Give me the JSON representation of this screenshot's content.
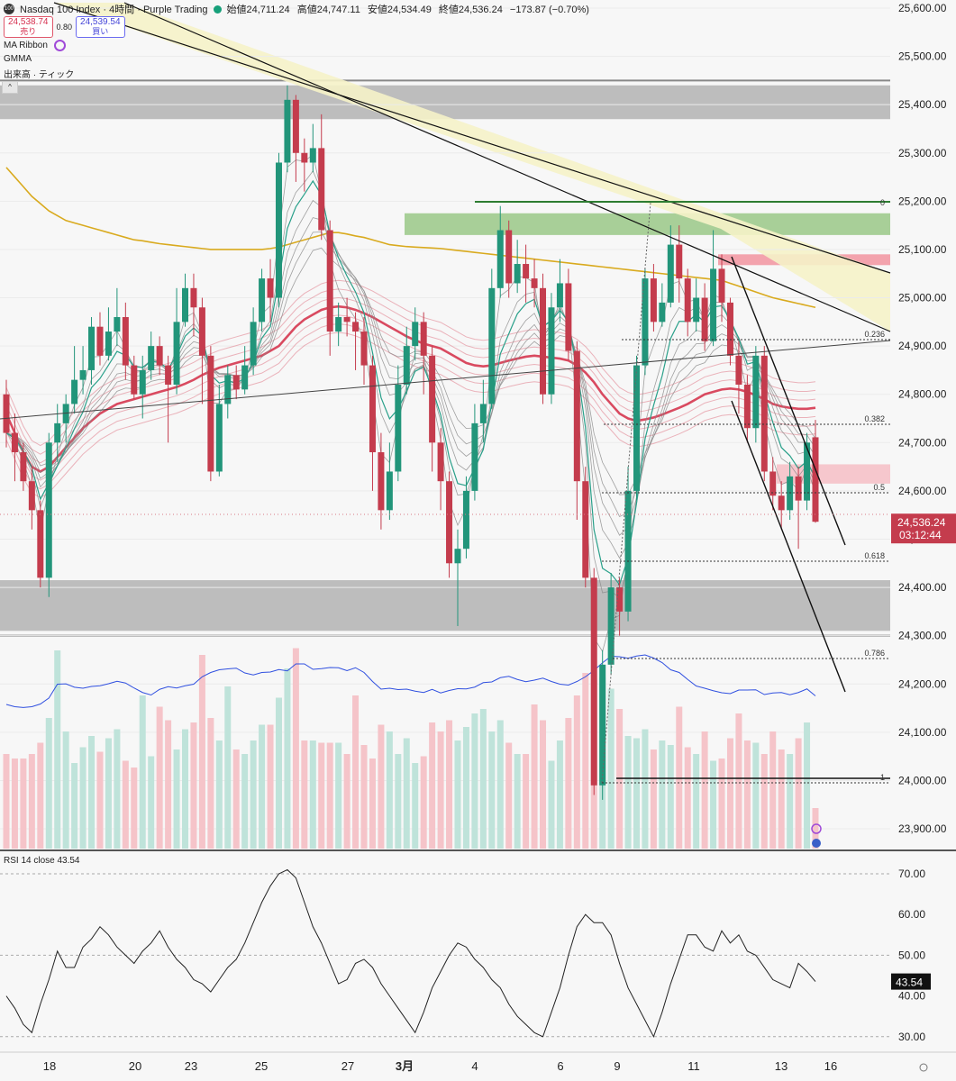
{
  "header": {
    "title": "Nasdaq 100 Index · 4時間 · Purple Trading",
    "logo_text": "100",
    "open": "始値24,711.24",
    "high": "高値24,747.11",
    "low": "安値24,534.49",
    "close": "終値24,536.24",
    "change": "−173.87 (−0.70%)",
    "sell_price": "24,538.74",
    "sell_label": "売り",
    "spread": "0.80",
    "buy_price": "24,539.54",
    "buy_label": "買い"
  },
  "indicators": [
    "MA Ribbon",
    "GMMA",
    "出来高 · ティック"
  ],
  "rsi_label": "RSI 14 close  43.54",
  "price_tag": {
    "value": "24,536.24",
    "countdown": "03:12:44"
  },
  "rsi_tag": "43.54",
  "colors": {
    "up": "#22957a",
    "down": "#c43c4d",
    "accent": "#c43c4d"
  },
  "chart_data": [
    {
      "type": "candlestick",
      "title": "Nasdaq 100 Index · 4時間 · Purple Trading",
      "y_ticks": [
        25600,
        25500,
        25400,
        25300,
        25200,
        25100,
        25000,
        24900,
        24800,
        24700,
        24600,
        24500,
        24400,
        24300,
        24200,
        24100,
        24000,
        23900
      ],
      "y_tick_labels": [
        "25,600.00",
        "25,500.00",
        "25,400.00",
        "25,300.00",
        "25,200.00",
        "25,100.00",
        "25,000.00",
        "24,900.00",
        "24,800.00",
        "24,700.00",
        "24,600.00",
        "24,500.00",
        "24,400.00",
        "24,300.00",
        "24,200.00",
        "24,100.00",
        "24,000.00",
        "23,900.00"
      ],
      "x_tick_labels": [
        "18",
        "20",
        "23",
        "25",
        "27",
        "3月",
        "4",
        "6",
        "9",
        "11",
        "13",
        "16"
      ],
      "ylim": [
        23830,
        25630
      ],
      "candles": [
        [
          24800,
          24720,
          24830,
          24690
        ],
        [
          24720,
          24680,
          24760,
          24620
        ],
        [
          24680,
          24620,
          24700,
          24600
        ],
        [
          24620,
          24560,
          24650,
          24520
        ],
        [
          24560,
          24420,
          24580,
          24400
        ],
        [
          24420,
          24700,
          24720,
          24380
        ],
        [
          24700,
          24740,
          24780,
          24660
        ],
        [
          24740,
          24780,
          24800,
          24700
        ],
        [
          24780,
          24830,
          24900,
          24760
        ],
        [
          24830,
          24850,
          24900,
          24800
        ],
        [
          24850,
          24940,
          24960,
          24820
        ],
        [
          24940,
          24880,
          24970,
          24860
        ],
        [
          24880,
          24930,
          24980,
          24870
        ],
        [
          24930,
          24960,
          25020,
          24900
        ],
        [
          24960,
          24860,
          24990,
          24830
        ],
        [
          24860,
          24800,
          24880,
          24790
        ],
        [
          24800,
          24850,
          24880,
          24750
        ],
        [
          24850,
          24900,
          24930,
          24830
        ],
        [
          24900,
          24860,
          24920,
          24840
        ],
        [
          24860,
          24820,
          24880,
          24700
        ],
        [
          24820,
          24950,
          25020,
          24800
        ],
        [
          24950,
          25020,
          25050,
          24940
        ],
        [
          25020,
          24980,
          25050,
          24920
        ],
        [
          24980,
          24880,
          25000,
          24780
        ],
        [
          24880,
          24640,
          24900,
          24620
        ],
        [
          24640,
          24780,
          24820,
          24630
        ],
        [
          24780,
          24840,
          24860,
          24750
        ],
        [
          24840,
          24810,
          24860,
          24790
        ],
        [
          24810,
          24860,
          24900,
          24800
        ],
        [
          24860,
          24950,
          24980,
          24840
        ],
        [
          24950,
          25040,
          25060,
          24930
        ],
        [
          25040,
          25000,
          25080,
          24950
        ],
        [
          25000,
          25280,
          25300,
          24980
        ],
        [
          25280,
          25410,
          25440,
          25260
        ],
        [
          25410,
          25300,
          25420,
          25240
        ],
        [
          25300,
          25280,
          25330,
          25220
        ],
        [
          25280,
          25310,
          25360,
          25260
        ],
        [
          25310,
          25140,
          25380,
          25120
        ],
        [
          25140,
          24930,
          25160,
          24880
        ],
        [
          24930,
          24960,
          24990,
          24900
        ],
        [
          24960,
          24950,
          25000,
          24920
        ],
        [
          24950,
          24930,
          24970,
          24850
        ],
        [
          24930,
          24860,
          24960,
          24820
        ],
        [
          24860,
          24680,
          24880,
          24600
        ],
        [
          24680,
          24560,
          24720,
          24520
        ],
        [
          24560,
          24640,
          24700,
          24540
        ],
        [
          24640,
          24820,
          24860,
          24620
        ],
        [
          24820,
          24900,
          24940,
          24800
        ],
        [
          24900,
          24950,
          24980,
          24870
        ],
        [
          24950,
          24880,
          24970,
          24800
        ],
        [
          24880,
          24700,
          24900,
          24640
        ],
        [
          24700,
          24620,
          24730,
          24560
        ],
        [
          24620,
          24450,
          24640,
          24420
        ],
        [
          24450,
          24480,
          24520,
          24320
        ],
        [
          24480,
          24600,
          24630,
          24460
        ],
        [
          24600,
          24740,
          24780,
          24580
        ],
        [
          24740,
          24780,
          24830,
          24700
        ],
        [
          24780,
          25020,
          25060,
          24770
        ],
        [
          25020,
          25140,
          25190,
          25000
        ],
        [
          25140,
          25030,
          25160,
          25000
        ],
        [
          25030,
          25070,
          25120,
          25010
        ],
        [
          25070,
          25040,
          25110,
          24990
        ],
        [
          25040,
          25020,
          25080,
          24980
        ],
        [
          25020,
          24800,
          25050,
          24780
        ],
        [
          24800,
          24980,
          25010,
          24780
        ],
        [
          24980,
          25030,
          25080,
          24950
        ],
        [
          25030,
          24890,
          25060,
          24870
        ],
        [
          24890,
          24620,
          24910,
          24540
        ],
        [
          24620,
          24420,
          24650,
          24400
        ],
        [
          24420,
          23990,
          24440,
          23970
        ],
        [
          23990,
          24240,
          24270,
          23960
        ],
        [
          24240,
          24400,
          24430,
          24220
        ],
        [
          24400,
          24350,
          24420,
          24300
        ],
        [
          24350,
          24600,
          24650,
          24330
        ],
        [
          24600,
          24860,
          24880,
          24580
        ],
        [
          24860,
          25040,
          25060,
          24840
        ],
        [
          25040,
          24950,
          25070,
          24930
        ],
        [
          24950,
          24990,
          25030,
          24940
        ],
        [
          24990,
          25110,
          25150,
          24980
        ],
        [
          25110,
          25040,
          25150,
          24990
        ],
        [
          25040,
          24950,
          25060,
          24920
        ],
        [
          24950,
          25000,
          25040,
          24930
        ],
        [
          25000,
          24910,
          25030,
          24890
        ],
        [
          24910,
          25060,
          25140,
          24900
        ],
        [
          25060,
          24990,
          25090,
          24950
        ],
        [
          24990,
          24880,
          25000,
          24860
        ],
        [
          24880,
          24820,
          24910,
          24760
        ],
        [
          24820,
          24730,
          24840,
          24700
        ],
        [
          24730,
          24880,
          24900,
          24700
        ],
        [
          24880,
          24640,
          24900,
          24620
        ],
        [
          24640,
          24590,
          24670,
          24560
        ],
        [
          24590,
          24560,
          24620,
          24520
        ],
        [
          24560,
          24630,
          24660,
          24540
        ],
        [
          24630,
          24580,
          24650,
          24480
        ],
        [
          24580,
          24700,
          24720,
          24560
        ],
        [
          24711,
          24536,
          24747,
          24534
        ]
      ],
      "moving_averages": {
        "ma_slow": [
          25270,
          25250,
          25230,
          25210,
          25195,
          25180,
          25170,
          25160,
          25155,
          25150,
          25145,
          25140,
          25135,
          25130,
          25125,
          25120,
          25118,
          25115,
          25112,
          25110,
          25108,
          25106,
          25104,
          25102,
          25100,
          25100,
          25100,
          25100,
          25100,
          25100,
          25100,
          25102,
          25105,
          25110,
          25115,
          25120,
          25125,
          25130,
          25135,
          25135,
          25132,
          25128,
          25125,
          25120,
          25115,
          25110,
          25108,
          25106,
          25105,
          25104,
          25103,
          25102,
          25100,
          25098,
          25096,
          25094,
          25092,
          25090,
          25088,
          25086,
          25084,
          25082,
          25080,
          25078,
          25076,
          25074,
          25072,
          25070,
          25068,
          25066,
          25064,
          25062,
          25060,
          25058,
          25056,
          25054,
          25052,
          25050,
          25048,
          25046,
          25044,
          25042,
          25040,
          25038,
          25036,
          25030,
          25024,
          25018,
          25012,
          25006,
          25000,
          24996,
          24992,
          24988,
          24984,
          24980
        ],
        "ma_mid": [
          24760,
          24720,
          24680,
          24650,
          24640,
          24650,
          24670,
          24690,
          24710,
          24730,
          24745,
          24760,
          24770,
          24780,
          24785,
          24790,
          24795,
          24800,
          24805,
          24810,
          24815,
          24822,
          24830,
          24840,
          24848,
          24855,
          24860,
          24865,
          24870,
          24875,
          24880,
          24890,
          24900,
          24920,
          24940,
          24955,
          24965,
          24975,
          24980,
          24982,
          24980,
          24975,
          24968,
          24960,
          24950,
          24940,
          24930,
          24920,
          24912,
          24905,
          24900,
          24895,
          24885,
          24875,
          24865,
          24860,
          24858,
          24860,
          24865,
          24870,
          24874,
          24878,
          24880,
          24878,
          24876,
          24874,
          24870,
          24860,
          24845,
          24825,
          24800,
          24780,
          24760,
          24750,
          24745,
          24748,
          24752,
          24758,
          24765,
          24772,
          24780,
          24790,
          24800,
          24805,
          24810,
          24812,
          24810,
          24805,
          24798,
          24790,
          24780,
          24775,
          24772,
          24770,
          24770,
          24772
        ]
      }
    },
    {
      "type": "bar",
      "title": "出来高 · ティック",
      "values_relative": [
        0.42,
        0.4,
        0.4,
        0.42,
        0.47,
        0.58,
        0.88,
        0.52,
        0.38,
        0.45,
        0.5,
        0.43,
        0.49,
        0.53,
        0.39,
        0.36,
        0.68,
        0.41,
        0.63,
        0.57,
        0.44,
        0.53,
        0.56,
        0.86,
        0.58,
        0.48,
        0.72,
        0.44,
        0.42,
        0.48,
        0.55,
        0.55,
        0.67,
        0.8,
        0.89,
        0.48,
        0.48,
        0.47,
        0.47,
        0.47,
        0.42,
        0.68,
        0.46,
        0.4,
        0.55,
        0.52,
        0.42,
        0.49,
        0.38,
        0.41,
        0.56,
        0.52,
        0.57,
        0.48,
        0.54,
        0.6,
        0.62,
        0.52,
        0.57,
        0.47,
        0.42,
        0.42,
        0.64,
        0.57,
        0.39,
        0.48,
        0.58,
        0.68,
        0.78,
        0.75,
        0.76,
        0.71,
        0.62,
        0.5,
        0.49,
        0.53,
        0.44,
        0.48,
        0.46,
        0.63,
        0.45,
        0.42,
        0.52,
        0.39,
        0.4,
        0.49,
        0.6,
        0.48,
        0.47,
        0.42,
        0.52,
        0.44,
        0.42,
        0.49,
        0.56,
        0.18
      ]
    },
    {
      "type": "line",
      "title": "RSI 14 close  43.54",
      "y_ticks": [
        70,
        60,
        50,
        40,
        30
      ],
      "y_tick_labels": [
        "70.00",
        "60.00",
        "50.00",
        "40.00",
        "30.00"
      ],
      "ylim": [
        28,
        73
      ],
      "values": [
        40,
        37,
        33,
        31,
        38,
        44,
        51,
        47,
        47,
        52,
        54,
        57,
        55,
        52,
        50,
        48,
        51,
        53,
        56,
        52,
        49,
        47,
        44,
        43,
        41,
        44,
        47,
        49,
        53,
        58,
        63,
        67,
        70,
        71,
        69,
        63,
        57,
        53,
        48,
        43,
        44,
        48,
        49,
        47,
        43,
        40,
        37,
        34,
        31,
        36,
        42,
        46,
        50,
        53,
        52,
        49,
        47,
        44,
        42,
        38,
        35,
        33,
        31,
        30,
        36,
        42,
        50,
        57,
        60,
        58,
        58,
        55,
        48,
        42,
        38,
        34,
        30,
        36,
        43,
        49,
        55,
        55,
        52,
        51,
        56,
        53,
        55,
        51,
        50,
        47,
        44,
        43,
        42,
        48,
        46,
        43.54
      ]
    }
  ]
}
